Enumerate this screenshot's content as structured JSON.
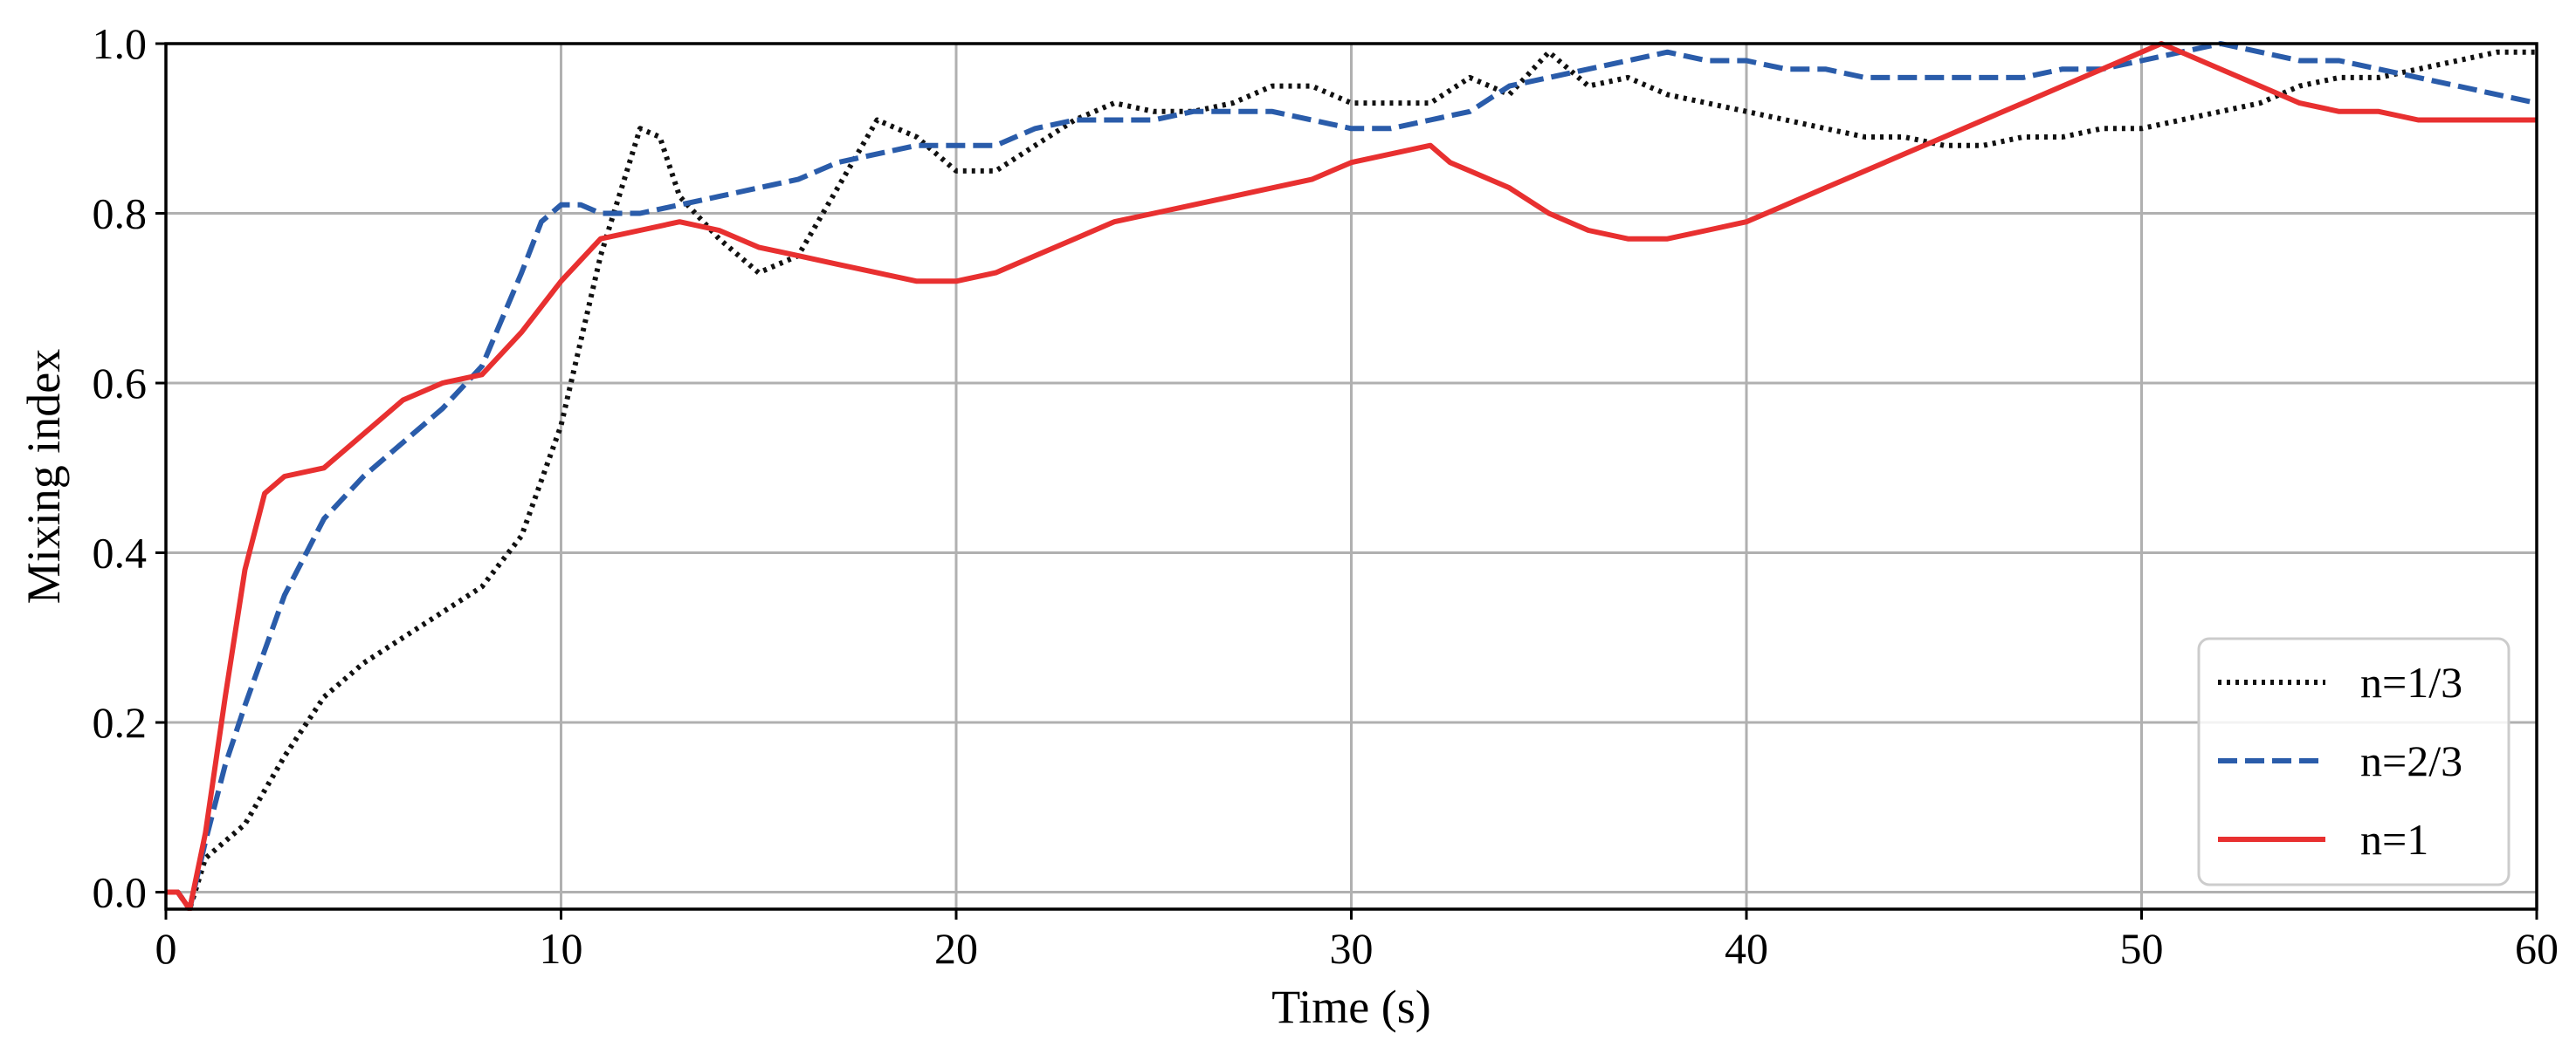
{
  "chart_data": {
    "type": "line",
    "title": "",
    "xlabel": "Time (s)",
    "ylabel": "Mixing index",
    "xlim": [
      0,
      60
    ],
    "ylim": [
      -0.02,
      1.0
    ],
    "xticks": [
      0,
      10,
      20,
      30,
      40,
      50,
      60
    ],
    "xtick_labels": [
      "0",
      "10",
      "20",
      "30",
      "40",
      "50",
      "60"
    ],
    "yticks": [
      0.0,
      0.2,
      0.4,
      0.6,
      0.8,
      1.0
    ],
    "ytick_labels": [
      "0.0",
      "0.2",
      "0.4",
      "0.6",
      "0.8",
      "1.0"
    ],
    "grid": true,
    "legend_position": "bottom-right",
    "series": [
      {
        "name": "n=1/3",
        "style": "dotted",
        "color": "#111111",
        "x": [
          0,
          0.3,
          0.6,
          1,
          2,
          3,
          4,
          5,
          6,
          7,
          8,
          9,
          10,
          11,
          12,
          12.5,
          13,
          14,
          15,
          16,
          17,
          18,
          19,
          20,
          21,
          22,
          23,
          24,
          25,
          26,
          27,
          28,
          29,
          30,
          31,
          32,
          33,
          34,
          35,
          36,
          37,
          38,
          39,
          40,
          41,
          42,
          43,
          44,
          45,
          46,
          47,
          48,
          49,
          50,
          51,
          52,
          53,
          54,
          55,
          56,
          57,
          58,
          59,
          60
        ],
        "y": [
          0.0,
          0.0,
          -0.02,
          0.04,
          0.08,
          0.16,
          0.23,
          0.27,
          0.3,
          0.33,
          0.36,
          0.42,
          0.55,
          0.75,
          0.9,
          0.89,
          0.82,
          0.77,
          0.73,
          0.75,
          0.83,
          0.91,
          0.89,
          0.85,
          0.85,
          0.88,
          0.91,
          0.93,
          0.92,
          0.92,
          0.93,
          0.95,
          0.95,
          0.93,
          0.93,
          0.93,
          0.96,
          0.94,
          0.99,
          0.95,
          0.96,
          0.94,
          0.93,
          0.92,
          0.91,
          0.9,
          0.89,
          0.89,
          0.88,
          0.88,
          0.89,
          0.89,
          0.9,
          0.9,
          0.91,
          0.92,
          0.93,
          0.95,
          0.96,
          0.96,
          0.97,
          0.98,
          0.99,
          0.99
        ]
      },
      {
        "name": "n=2/3",
        "style": "dashed",
        "color": "#2a5caa",
        "x": [
          0,
          0.3,
          0.6,
          1,
          1.5,
          2,
          3,
          4,
          5,
          6,
          7,
          8,
          9,
          9.5,
          10,
          10.5,
          11,
          12,
          13,
          14,
          15,
          16,
          17,
          18,
          19,
          20,
          21,
          22,
          23,
          24,
          25,
          26,
          27,
          28,
          29,
          30,
          31,
          32,
          33,
          34,
          35,
          36,
          37,
          38,
          39,
          40,
          41,
          42,
          43,
          44,
          45,
          46,
          47,
          48,
          49,
          50,
          51,
          52,
          53,
          54,
          55,
          56,
          57,
          58,
          59,
          60
        ],
        "y": [
          0.0,
          0.0,
          -0.02,
          0.06,
          0.15,
          0.22,
          0.35,
          0.44,
          0.49,
          0.53,
          0.57,
          0.62,
          0.73,
          0.79,
          0.81,
          0.81,
          0.8,
          0.8,
          0.81,
          0.82,
          0.83,
          0.84,
          0.86,
          0.87,
          0.88,
          0.88,
          0.88,
          0.9,
          0.91,
          0.91,
          0.91,
          0.92,
          0.92,
          0.92,
          0.91,
          0.9,
          0.9,
          0.91,
          0.92,
          0.95,
          0.96,
          0.97,
          0.98,
          0.99,
          0.98,
          0.98,
          0.97,
          0.97,
          0.96,
          0.96,
          0.96,
          0.96,
          0.96,
          0.97,
          0.97,
          0.98,
          0.99,
          1.0,
          0.99,
          0.98,
          0.98,
          0.97,
          0.96,
          0.95,
          0.94,
          0.93
        ]
      },
      {
        "name": "n=1",
        "style": "solid",
        "color": "#e83030",
        "x": [
          0,
          0.3,
          0.6,
          1,
          1.5,
          2,
          2.5,
          3,
          4,
          5,
          6,
          7,
          8,
          9,
          10,
          11,
          12,
          13,
          14,
          15,
          16,
          17,
          18,
          19,
          20,
          21,
          22,
          23,
          24,
          25,
          26,
          27,
          28,
          29,
          30,
          31,
          32,
          32.5,
          33,
          34,
          35,
          36,
          37,
          38,
          39,
          40,
          41,
          42,
          43,
          44,
          45,
          46,
          47,
          48,
          49,
          50,
          50.5,
          51,
          52,
          53,
          54,
          55,
          56,
          57,
          58,
          59,
          60
        ],
        "y": [
          0.0,
          0.0,
          -0.02,
          0.07,
          0.23,
          0.38,
          0.47,
          0.49,
          0.5,
          0.54,
          0.58,
          0.6,
          0.61,
          0.66,
          0.72,
          0.77,
          0.78,
          0.79,
          0.78,
          0.76,
          0.75,
          0.74,
          0.73,
          0.72,
          0.72,
          0.73,
          0.75,
          0.77,
          0.79,
          0.8,
          0.81,
          0.82,
          0.83,
          0.84,
          0.86,
          0.87,
          0.88,
          0.86,
          0.85,
          0.83,
          0.8,
          0.78,
          0.77,
          0.77,
          0.78,
          0.79,
          0.81,
          0.83,
          0.85,
          0.87,
          0.89,
          0.91,
          0.93,
          0.95,
          0.97,
          0.99,
          1.0,
          0.99,
          0.97,
          0.95,
          0.93,
          0.92,
          0.92,
          0.91,
          0.91,
          0.91,
          0.91
        ]
      }
    ]
  }
}
